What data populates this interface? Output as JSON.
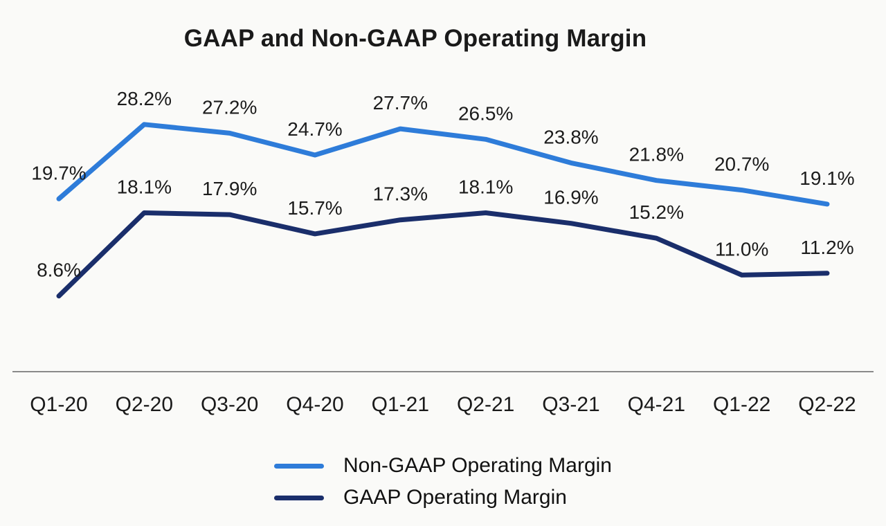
{
  "chart_data": {
    "type": "line",
    "title": "GAAP and Non-GAAP Operating Margin",
    "categories": [
      "Q1-20",
      "Q2-20",
      "Q3-20",
      "Q4-20",
      "Q1-21",
      "Q2-21",
      "Q3-21",
      "Q4-21",
      "Q1-22",
      "Q2-22"
    ],
    "series": [
      {
        "name": "Non-GAAP Operating Margin",
        "color": "#2e7cd9",
        "values": [
          19.7,
          28.2,
          27.2,
          24.7,
          27.7,
          26.5,
          23.8,
          21.8,
          20.7,
          19.1
        ],
        "labels": [
          "19.7%",
          "28.2%",
          "27.2%",
          "24.7%",
          "27.7%",
          "26.5%",
          "23.8%",
          "21.8%",
          "20.7%",
          "19.1%"
        ]
      },
      {
        "name": "GAAP Operating Margin",
        "color": "#1a2e6b",
        "values": [
          8.6,
          18.1,
          17.9,
          15.7,
          17.3,
          18.1,
          16.9,
          15.2,
          11.0,
          11.2
        ],
        "labels": [
          "8.6%",
          "18.1%",
          "17.9%",
          "15.7%",
          "17.3%",
          "18.1%",
          "16.9%",
          "15.2%",
          "11.0%",
          "11.2%"
        ]
      }
    ],
    "ylim": [
      5,
      30
    ],
    "grid": false,
    "legend_position": "bottom",
    "xlabel": "",
    "ylabel": "",
    "data_labels_shown": true,
    "axis_line_color": "#8a8a8a",
    "background_color": "#fafaf8",
    "text_color": "#1a1a1a"
  }
}
